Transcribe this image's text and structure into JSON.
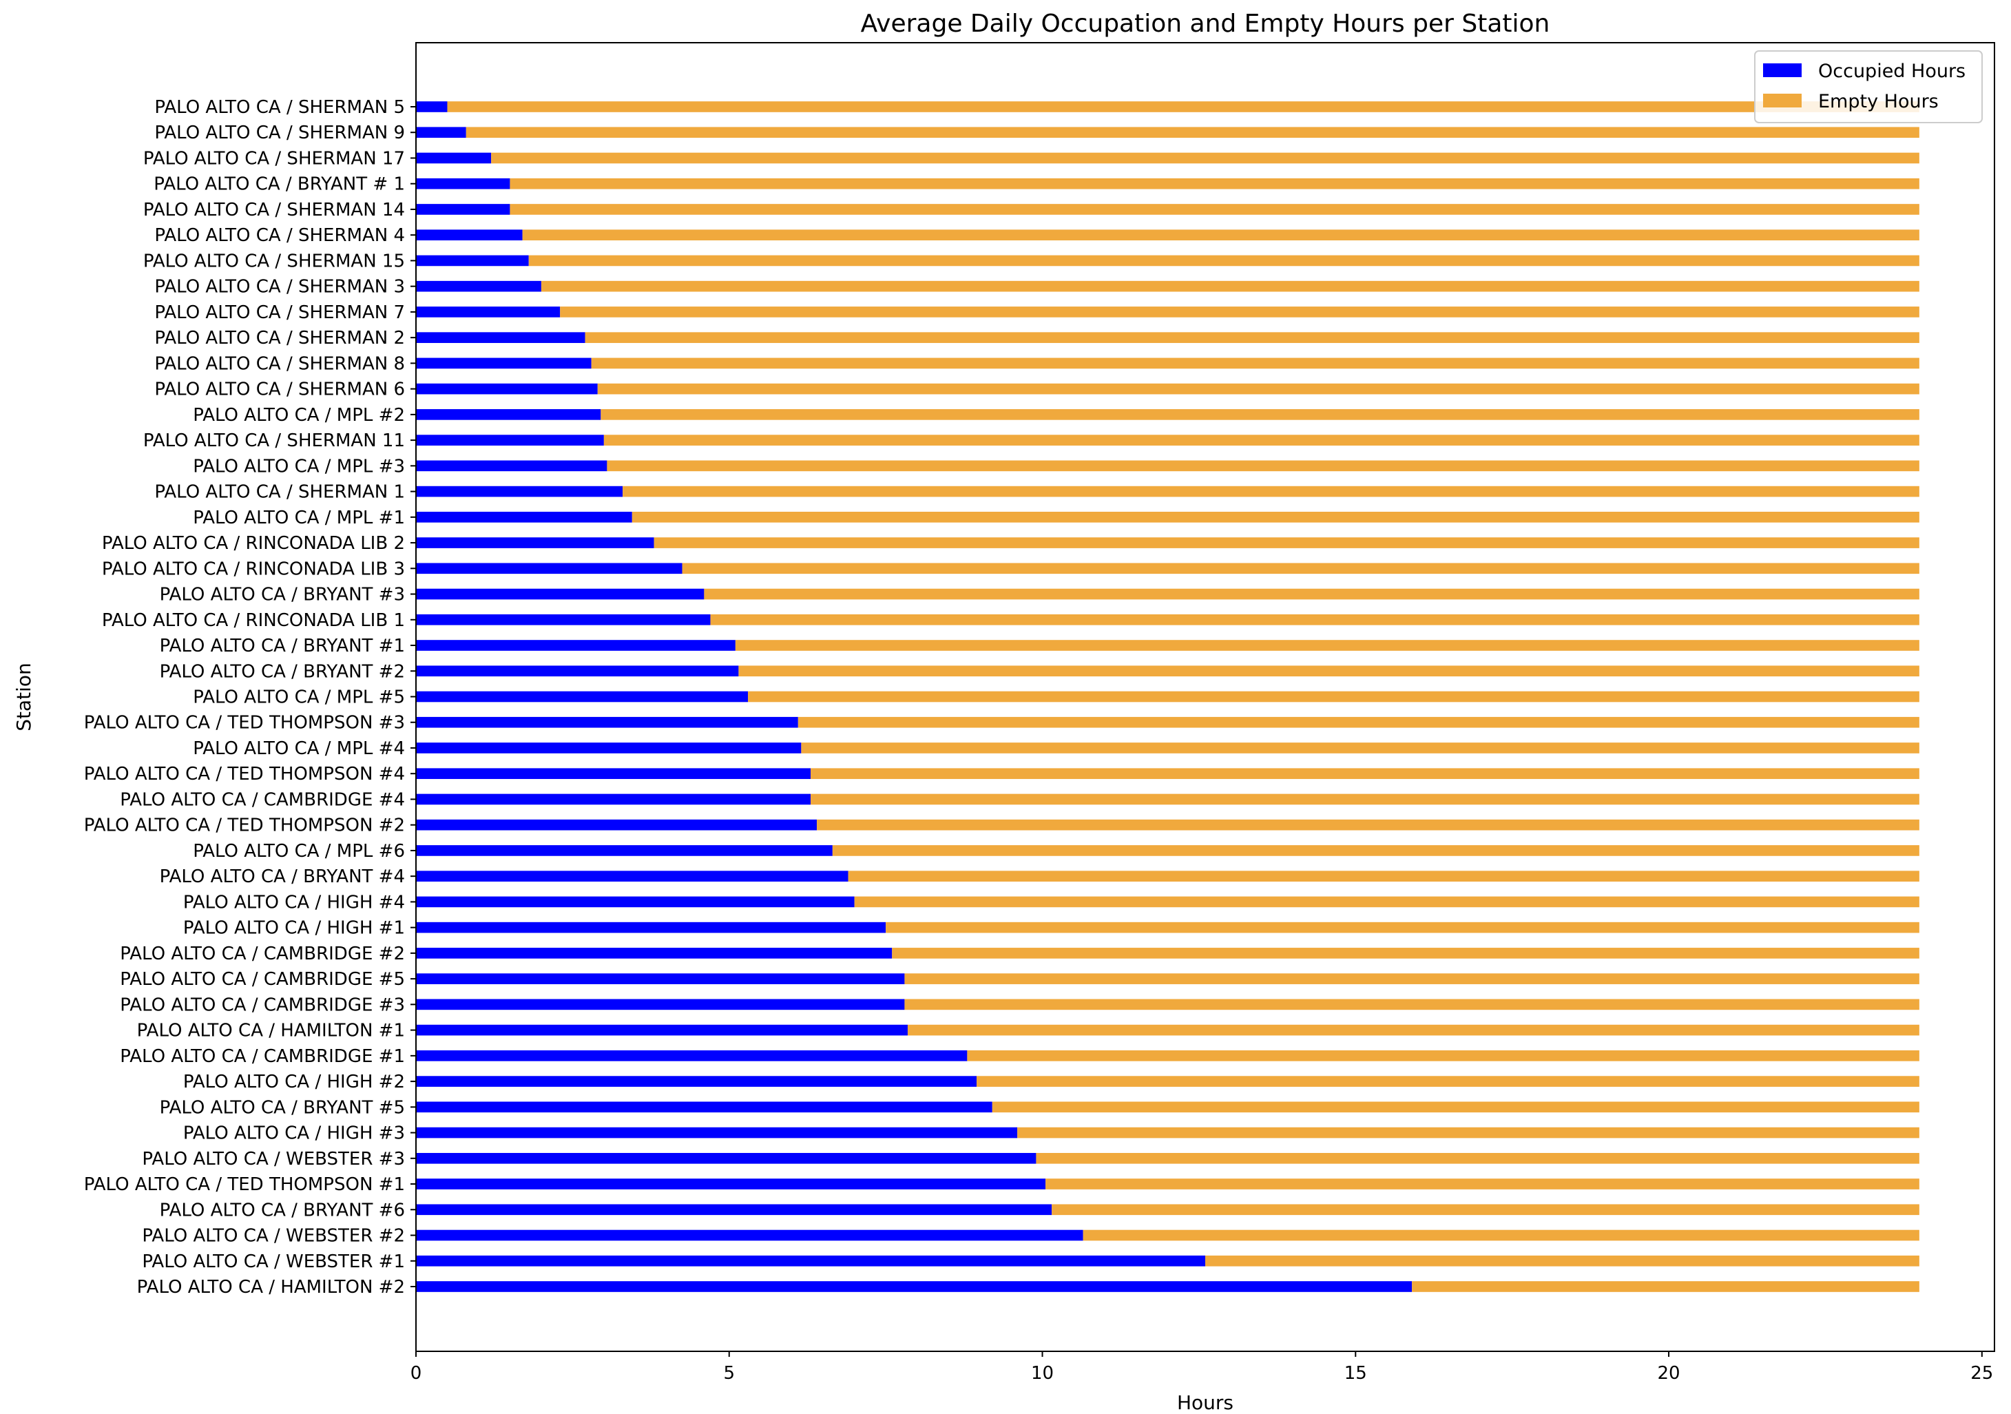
{
  "chart_data": {
    "type": "bar",
    "orientation": "horizontal",
    "stacked": true,
    "title": "Average Daily Occupation and Empty Hours per Station",
    "xlabel": "Hours",
    "ylabel": "Station",
    "xlim": [
      0,
      25.2
    ],
    "xticks": [
      0,
      5,
      10,
      15,
      20,
      25
    ],
    "grid": false,
    "legend_position": "top-right",
    "categories": [
      "PALO ALTO CA / SHERMAN 5",
      "PALO ALTO CA / SHERMAN 9",
      "PALO ALTO CA / SHERMAN 17",
      "PALO ALTO CA / BRYANT # 1",
      "PALO ALTO CA / SHERMAN 14",
      "PALO ALTO CA / SHERMAN 4",
      "PALO ALTO CA / SHERMAN 15",
      "PALO ALTO CA / SHERMAN 3",
      "PALO ALTO CA / SHERMAN 7",
      "PALO ALTO CA / SHERMAN 2",
      "PALO ALTO CA / SHERMAN 8",
      "PALO ALTO CA / SHERMAN 6",
      "PALO ALTO CA / MPL #2",
      "PALO ALTO CA / SHERMAN 11",
      "PALO ALTO CA / MPL #3",
      "PALO ALTO CA / SHERMAN 1",
      "PALO ALTO CA / MPL #1",
      "PALO ALTO CA / RINCONADA LIB 2",
      "PALO ALTO CA / RINCONADA LIB 3",
      "PALO ALTO CA / BRYANT #3",
      "PALO ALTO CA / RINCONADA LIB 1",
      "PALO ALTO CA / BRYANT #1",
      "PALO ALTO CA / BRYANT #2",
      "PALO ALTO CA / MPL #5",
      "PALO ALTO CA / TED THOMPSON #3",
      "PALO ALTO CA / MPL #4",
      "PALO ALTO CA / TED THOMPSON #4",
      "PALO ALTO CA / CAMBRIDGE #4",
      "PALO ALTO CA / TED THOMPSON #2",
      "PALO ALTO CA / MPL #6",
      "PALO ALTO CA / BRYANT #4",
      "PALO ALTO CA / HIGH #4",
      "PALO ALTO CA / HIGH #1",
      "PALO ALTO CA / CAMBRIDGE #2",
      "PALO ALTO CA / CAMBRIDGE #5",
      "PALO ALTO CA / CAMBRIDGE #3",
      "PALO ALTO CA / HAMILTON #1",
      "PALO ALTO CA / CAMBRIDGE #1",
      "PALO ALTO CA / HIGH #2",
      "PALO ALTO CA / BRYANT #5",
      "PALO ALTO CA / HIGH #3",
      "PALO ALTO CA / WEBSTER #3",
      "PALO ALTO CA / TED THOMPSON #1",
      "PALO ALTO CA / BRYANT #6",
      "PALO ALTO CA / WEBSTER #2",
      "PALO ALTO CA / WEBSTER #1",
      "PALO ALTO CA / HAMILTON #2"
    ],
    "series": [
      {
        "name": "Occupied Hours",
        "color": "#0000ff",
        "values": [
          0.5,
          0.8,
          1.2,
          1.5,
          1.5,
          1.7,
          1.8,
          2.0,
          2.3,
          2.7,
          2.8,
          2.9,
          2.95,
          3.0,
          3.05,
          3.3,
          3.45,
          3.8,
          4.25,
          4.6,
          4.7,
          5.1,
          5.15,
          5.3,
          6.1,
          6.15,
          6.3,
          6.3,
          6.4,
          6.65,
          6.9,
          7.0,
          7.5,
          7.6,
          7.8,
          7.8,
          7.85,
          8.8,
          8.95,
          9.2,
          9.6,
          9.9,
          10.05,
          10.15,
          10.65,
          12.6,
          15.9
        ]
      },
      {
        "name": "Empty Hours",
        "color": "#f0a93d",
        "values": [
          23.5,
          23.2,
          22.8,
          22.5,
          22.5,
          22.3,
          22.2,
          22.0,
          21.7,
          21.3,
          21.2,
          21.1,
          21.05,
          21.0,
          20.95,
          20.7,
          20.55,
          20.2,
          19.75,
          19.4,
          19.3,
          18.9,
          18.85,
          18.7,
          17.9,
          17.85,
          17.7,
          17.7,
          17.6,
          17.35,
          17.1,
          17.0,
          16.5,
          16.4,
          16.2,
          16.2,
          16.15,
          15.2,
          15.05,
          14.8,
          14.4,
          14.1,
          13.95,
          13.85,
          13.35,
          11.4,
          8.1
        ]
      }
    ]
  }
}
